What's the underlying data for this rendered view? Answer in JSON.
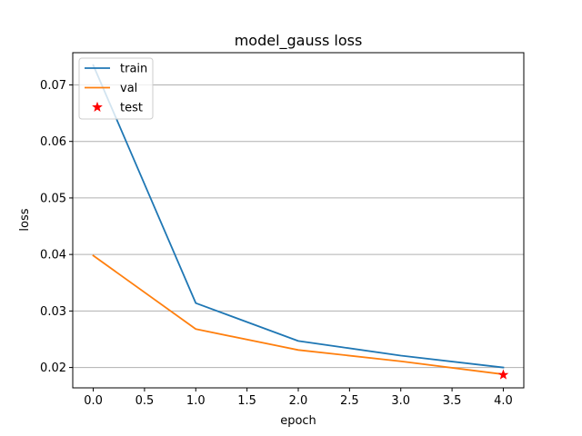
{
  "chart_data": {
    "type": "line",
    "title": "model_gauss loss",
    "xlabel": "epoch",
    "ylabel": "loss",
    "xlim": [
      -0.2,
      4.2
    ],
    "ylim": [
      0.0164,
      0.0757
    ],
    "x_ticks": [
      0.0,
      0.5,
      1.0,
      1.5,
      2.0,
      2.5,
      3.0,
      3.5,
      4.0
    ],
    "x_tick_labels": [
      "0.0",
      "0.5",
      "1.0",
      "1.5",
      "2.0",
      "2.5",
      "3.0",
      "3.5",
      "4.0"
    ],
    "y_ticks": [
      0.02,
      0.03,
      0.04,
      0.05,
      0.06,
      0.07
    ],
    "y_tick_labels": [
      "0.02",
      "0.03",
      "0.04",
      "0.05",
      "0.06",
      "0.07"
    ],
    "grid": "horizontal",
    "legend_position": "top-left",
    "series": [
      {
        "name": "train",
        "kind": "line",
        "color": "#1f77b4",
        "x": [
          0,
          1,
          2,
          3,
          4
        ],
        "values": [
          0.0735,
          0.0314,
          0.0247,
          0.0221,
          0.02
        ]
      },
      {
        "name": "val",
        "kind": "line",
        "color": "#ff7f0e",
        "x": [
          0,
          1,
          2,
          3,
          4
        ],
        "values": [
          0.0398,
          0.0268,
          0.0231,
          0.0211,
          0.0188
        ]
      },
      {
        "name": "test",
        "kind": "marker",
        "marker": "star",
        "color": "#ff0000",
        "x": [
          4
        ],
        "values": [
          0.0187
        ]
      }
    ]
  }
}
